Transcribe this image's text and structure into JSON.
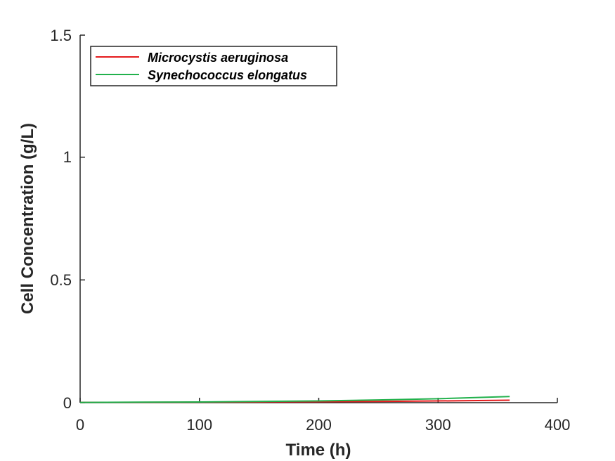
{
  "chart_data": {
    "type": "line",
    "title": "",
    "xlabel": "Time (h)",
    "ylabel": "Cell Concentration (g/L)",
    "xlim": [
      0,
      400
    ],
    "ylim": [
      0,
      1.5
    ],
    "xticks": [
      "0",
      "100",
      "200",
      "300",
      "400"
    ],
    "yticks": [
      "0",
      "0.5",
      "1",
      "1.5"
    ],
    "grid": false,
    "legend_position": "top-left",
    "series": [
      {
        "name": "Microcystis aeruginosa",
        "color": "#e41a1c",
        "x": [
          0,
          50,
          100,
          150,
          200,
          250,
          300,
          360
        ],
        "y": [
          0.001,
          0.0015,
          0.002,
          0.003,
          0.004,
          0.005,
          0.007,
          0.01
        ]
      },
      {
        "name": "Synechococcus elongatus",
        "color": "#22b14c",
        "x": [
          0,
          50,
          100,
          150,
          200,
          250,
          300,
          360
        ],
        "y": [
          0.001,
          0.002,
          0.003,
          0.005,
          0.007,
          0.011,
          0.016,
          0.025
        ]
      }
    ]
  }
}
